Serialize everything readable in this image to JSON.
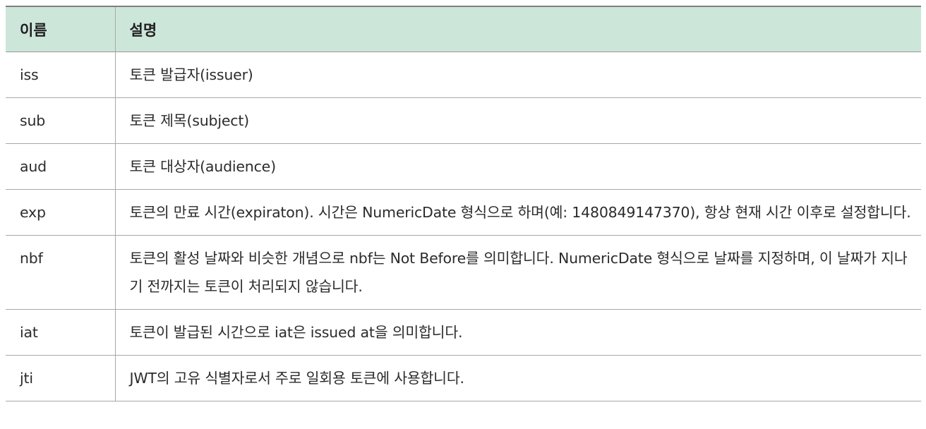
{
  "table": {
    "headers": {
      "name": "이름",
      "description": "설명"
    },
    "rows": [
      {
        "name": "iss",
        "description": "토큰 발급자(issuer)"
      },
      {
        "name": "sub",
        "description": "토큰 제목(subject)"
      },
      {
        "name": "aud",
        "description": "토큰 대상자(audience)"
      },
      {
        "name": "exp",
        "description": "토큰의 만료 시간(expiraton). 시간은 NumericDate 형식으로 하며(예: 1480849147370), 항상 현재 시간 이후로 설정합니다."
      },
      {
        "name": "nbf",
        "description": "토큰의 활성 날짜와 비슷한 개념으로 nbf는 Not Before를 의미합니다. NumericDate 형식으로 날짜를 지정하며, 이 날짜가 지나기 전까지는 토큰이 처리되지 않습니다."
      },
      {
        "name": "iat",
        "description": "토큰이 발급된 시간으로 iat은 issued at을 의미합니다."
      },
      {
        "name": "jti",
        "description": "JWT의 고유 식별자로서 주로 일회용 토큰에 사용합니다."
      }
    ]
  }
}
